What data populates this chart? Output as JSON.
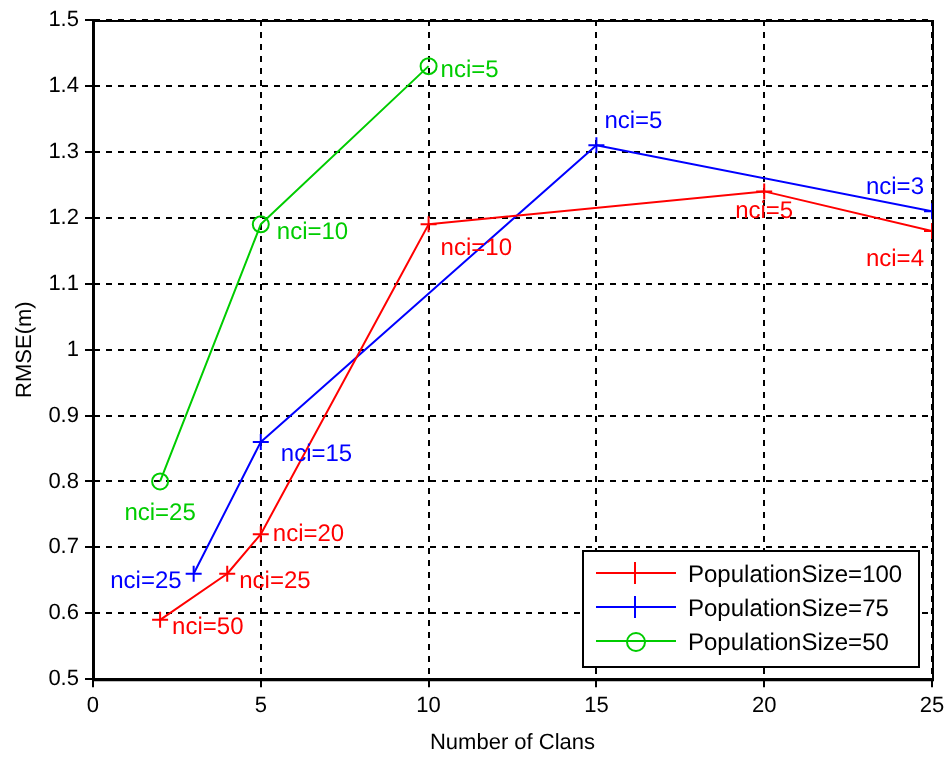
{
  "chart_data": {
    "type": "line",
    "xlabel": "Number of Clans",
    "ylabel": "RMSE(m)",
    "xlim": [
      0,
      25
    ],
    "xticks": [
      0,
      5,
      10,
      15,
      20,
      25
    ],
    "ylim": [
      0.5,
      1.5
    ],
    "yticks": [
      0.5,
      0.6,
      0.7,
      0.8,
      0.9,
      1,
      1.1,
      1.2,
      1.3,
      1.4,
      1.5
    ],
    "grid": true,
    "legend": "bottom right",
    "line_style": "solid",
    "series": [
      {
        "name": "PopulationSize=100",
        "color": "#ff0000",
        "marker": "cross",
        "x": [
          2,
          4,
          5,
          10,
          20,
          25
        ],
        "values": [
          0.59,
          0.66,
          0.72,
          1.19,
          1.24,
          1.18
        ]
      },
      {
        "name": "PopulationSize=75",
        "color": "#0000ff",
        "marker": "cross",
        "x": [
          3,
          5,
          15,
          25
        ],
        "values": [
          0.66,
          0.86,
          1.31,
          1.21
        ]
      },
      {
        "name": "PopulationSize=50",
        "color": "#00cc00",
        "marker": "circle",
        "x": [
          2,
          5,
          10
        ],
        "values": [
          0.8,
          1.19,
          1.43
        ]
      }
    ],
    "annotations": [
      {
        "text": "nci=50",
        "x": 2,
        "y": 0.59
      },
      {
        "text": "nci=25",
        "x": 4,
        "y": 0.66
      },
      {
        "text": "nci=20",
        "x": 5,
        "y": 0.72
      },
      {
        "text": "nci=10",
        "x": 10,
        "y": 1.19
      },
      {
        "text": "nci=5",
        "x": 20,
        "y": 1.24
      },
      {
        "text": "nci=4",
        "x": 25,
        "y": 1.18
      },
      {
        "text": "nci=25",
        "x": 3,
        "y": 0.66
      },
      {
        "text": "nci=15",
        "x": 5,
        "y": 0.86
      },
      {
        "text": "nci=5",
        "x": 15,
        "y": 1.31
      },
      {
        "text": "nci=3",
        "x": 25,
        "y": 1.21
      },
      {
        "text": "nci=25",
        "x": 2,
        "y": 0.8
      },
      {
        "text": "nci=10",
        "x": 5,
        "y": 1.19
      },
      {
        "text": "nci=5",
        "x": 10,
        "y": 1.43
      }
    ]
  }
}
